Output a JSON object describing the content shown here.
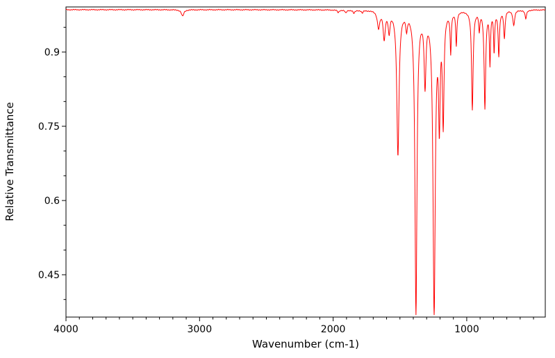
{
  "chart_data": {
    "type": "line",
    "title": "",
    "xlabel": "Wavenumber (cm-1)",
    "ylabel": "Relative Transmittance",
    "line_color": "#ff0000",
    "background_color": "#ffffff",
    "axis_color": "#000000",
    "grid": false,
    "legend": false,
    "x_axis": {
      "label": "Wavenumber (cm-1)",
      "left_value": 4000,
      "right_value": 412,
      "reversed": true,
      "major_ticks": [
        4000,
        3000,
        2000,
        1000
      ],
      "major_tick_labels": [
        "4000",
        "3000",
        "2000",
        "1000"
      ],
      "minor_tick_interval": 100
    },
    "y_axis": {
      "label": "Relative Transmittance",
      "min": 0.3645,
      "max": 0.9911,
      "major_ticks": [
        0.45,
        0.6,
        0.75,
        0.9
      ],
      "major_tick_labels": [
        "0.45",
        "0.6",
        "0.75",
        "0.9"
      ],
      "minor_tick_interval": 0.05
    },
    "baseline_transmittance": 0.9855,
    "peak_shape": "lorentzian",
    "peaks": [
      {
        "center": 3127,
        "min_transmittance": 0.9725,
        "half_width": 11
      },
      {
        "center": 1962,
        "min_transmittance": 0.98,
        "half_width": 7
      },
      {
        "center": 1905,
        "min_transmittance": 0.9795,
        "half_width": 7
      },
      {
        "center": 1844,
        "min_transmittance": 0.979,
        "half_width": 8
      },
      {
        "center": 1782,
        "min_transmittance": 0.98,
        "half_width": 7
      },
      {
        "center": 1660,
        "min_transmittance": 0.952,
        "half_width": 11
      },
      {
        "center": 1618,
        "min_transmittance": 0.93,
        "half_width": 9
      },
      {
        "center": 1581,
        "min_transmittance": 0.945,
        "half_width": 8
      },
      {
        "center": 1515,
        "min_transmittance": 0.694,
        "half_width": 10
      },
      {
        "center": 1450,
        "min_transmittance": 0.956,
        "half_width": 7
      },
      {
        "center": 1380,
        "min_transmittance": 0.374,
        "half_width": 9
      },
      {
        "center": 1312,
        "min_transmittance": 0.845,
        "half_width": 8
      },
      {
        "center": 1244,
        "min_transmittance": 0.376,
        "half_width": 10
      },
      {
        "center": 1205,
        "min_transmittance": 0.775,
        "half_width": 7
      },
      {
        "center": 1176,
        "min_transmittance": 0.765,
        "half_width": 7
      },
      {
        "center": 1120,
        "min_transmittance": 0.905,
        "half_width": 5
      },
      {
        "center": 1078,
        "min_transmittance": 0.918,
        "half_width": 5
      },
      {
        "center": 958,
        "min_transmittance": 0.785,
        "half_width": 7
      },
      {
        "center": 906,
        "min_transmittance": 0.948,
        "half_width": 5
      },
      {
        "center": 864,
        "min_transmittance": 0.79,
        "half_width": 7
      },
      {
        "center": 826,
        "min_transmittance": 0.88,
        "half_width": 5
      },
      {
        "center": 795,
        "min_transmittance": 0.905,
        "half_width": 5
      },
      {
        "center": 760,
        "min_transmittance": 0.895,
        "half_width": 6
      },
      {
        "center": 718,
        "min_transmittance": 0.93,
        "half_width": 6
      },
      {
        "center": 648,
        "min_transmittance": 0.955,
        "half_width": 8
      },
      {
        "center": 558,
        "min_transmittance": 0.968,
        "half_width": 7
      }
    ]
  }
}
